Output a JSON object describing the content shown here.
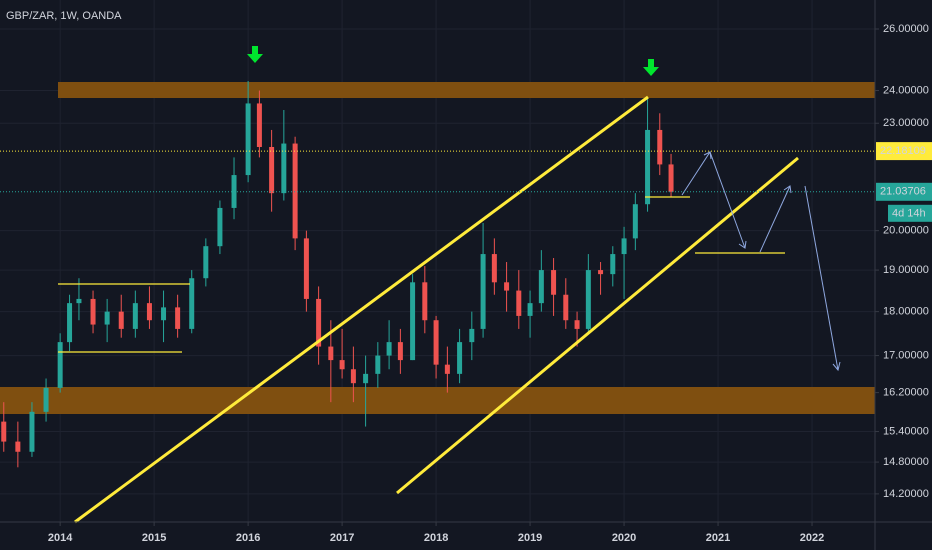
{
  "chart_data": {
    "type": "candlestick",
    "title": "GBP/ZAR, 1W, OANDA",
    "x": [
      2013.4,
      2013.55,
      2013.7,
      2013.85,
      2014.0,
      2014.1,
      2014.2,
      2014.35,
      2014.5,
      2014.65,
      2014.8,
      2014.95,
      2015.1,
      2015.25,
      2015.4,
      2015.55,
      2015.7,
      2015.85,
      2016.0,
      2016.12,
      2016.25,
      2016.38,
      2016.5,
      2016.62,
      2016.75,
      2016.88,
      2017.0,
      2017.12,
      2017.25,
      2017.38,
      2017.5,
      2017.62,
      2017.75,
      2017.88,
      2018.0,
      2018.12,
      2018.25,
      2018.38,
      2018.5,
      2018.62,
      2018.75,
      2018.88,
      2019.0,
      2019.12,
      2019.25,
      2019.38,
      2019.5,
      2019.62,
      2019.75,
      2019.88,
      2020.0,
      2020.12,
      2020.25,
      2020.38,
      2020.5
    ],
    "open": [
      15.6,
      15.2,
      15.0,
      15.8,
      16.3,
      17.3,
      18.2,
      18.3,
      17.7,
      18.0,
      17.6,
      18.2,
      17.8,
      18.1,
      17.6,
      18.8,
      19.6,
      20.6,
      21.5,
      23.6,
      22.3,
      21.0,
      22.4,
      19.8,
      18.3,
      17.2,
      16.9,
      16.7,
      16.4,
      16.6,
      17.0,
      17.3,
      16.9,
      18.7,
      17.8,
      16.8,
      16.6,
      17.3,
      17.6,
      19.4,
      18.7,
      18.5,
      17.9,
      18.2,
      19.0,
      18.4,
      17.8,
      17.6,
      19.0,
      18.9,
      19.4,
      19.8,
      20.7,
      22.8,
      21.8
    ],
    "high": [
      16.0,
      15.6,
      16.0,
      16.5,
      17.5,
      18.4,
      18.8,
      18.5,
      18.3,
      18.4,
      18.5,
      18.6,
      18.5,
      18.4,
      19.0,
      19.8,
      20.8,
      22.0,
      24.3,
      24.0,
      22.8,
      23.4,
      22.6,
      20.0,
      18.6,
      17.8,
      17.6,
      17.2,
      17.0,
      17.3,
      17.8,
      17.6,
      18.9,
      19.1,
      17.9,
      17.2,
      17.6,
      18.0,
      20.2,
      19.8,
      19.2,
      19.0,
      18.5,
      19.5,
      19.3,
      18.8,
      18.0,
      19.4,
      19.2,
      19.6,
      20.1,
      21.0,
      23.8,
      23.3,
      22.1
    ],
    "low": [
      15.0,
      14.7,
      14.9,
      15.6,
      16.2,
      17.1,
      17.8,
      17.5,
      17.3,
      17.4,
      17.4,
      17.6,
      17.3,
      17.4,
      17.5,
      18.6,
      19.4,
      20.3,
      21.3,
      22.0,
      20.5,
      20.8,
      19.5,
      18.0,
      16.8,
      16.0,
      16.5,
      16.0,
      15.5,
      16.3,
      16.7,
      16.6,
      16.9,
      17.5,
      16.5,
      16.2,
      16.4,
      16.9,
      17.4,
      18.4,
      18.0,
      17.6,
      17.4,
      18.0,
      17.9,
      17.6,
      17.2,
      17.5,
      18.4,
      18.6,
      18.3,
      19.5,
      20.5,
      21.5,
      20.9
    ],
    "close": [
      15.2,
      15.0,
      15.8,
      16.3,
      17.3,
      18.2,
      18.3,
      17.7,
      18.0,
      17.6,
      18.2,
      17.8,
      18.1,
      17.6,
      18.8,
      19.6,
      20.6,
      21.5,
      23.6,
      22.3,
      21.0,
      22.4,
      19.8,
      18.3,
      17.2,
      16.9,
      16.7,
      16.4,
      16.6,
      17.0,
      17.3,
      16.9,
      18.7,
      17.8,
      16.8,
      16.6,
      17.3,
      17.6,
      19.4,
      18.7,
      18.5,
      17.9,
      18.2,
      19.0,
      18.4,
      17.8,
      17.6,
      19.0,
      18.9,
      19.4,
      19.8,
      20.7,
      22.8,
      21.8,
      21.03706
    ],
    "up_color": "#26a69a",
    "down_color": "#ef5350",
    "xlim": [
      2013.36,
      2022.67
    ],
    "xticks": [
      2014,
      2015,
      2016,
      2017,
      2018,
      2019,
      2020,
      2021,
      2022
    ],
    "ylim": [
      13.69,
      27.0
    ],
    "log_scale": true,
    "grid": true,
    "yticks": [
      {
        "value": 26,
        "label": "26.00000"
      },
      {
        "value": 24,
        "label": "24.00000"
      },
      {
        "value": 23,
        "label": "23.00000"
      },
      {
        "value": 20,
        "label": "20.00000"
      },
      {
        "value": 19,
        "label": "19.00000"
      },
      {
        "value": 18,
        "label": "18.00000"
      },
      {
        "value": 17,
        "label": "17.00000"
      },
      {
        "value": 16.2,
        "label": "16.20000"
      },
      {
        "value": 15.4,
        "label": "15.40000"
      },
      {
        "value": 14.8,
        "label": "14.80000"
      },
      {
        "value": 14.2,
        "label": "14.20000"
      }
    ],
    "price_lines": [
      {
        "value": 22.18109,
        "color": "#ffeb3b"
      },
      {
        "value": 21.03706,
        "color": "#26a69a"
      }
    ],
    "countdown": "4d 14h"
  }
}
